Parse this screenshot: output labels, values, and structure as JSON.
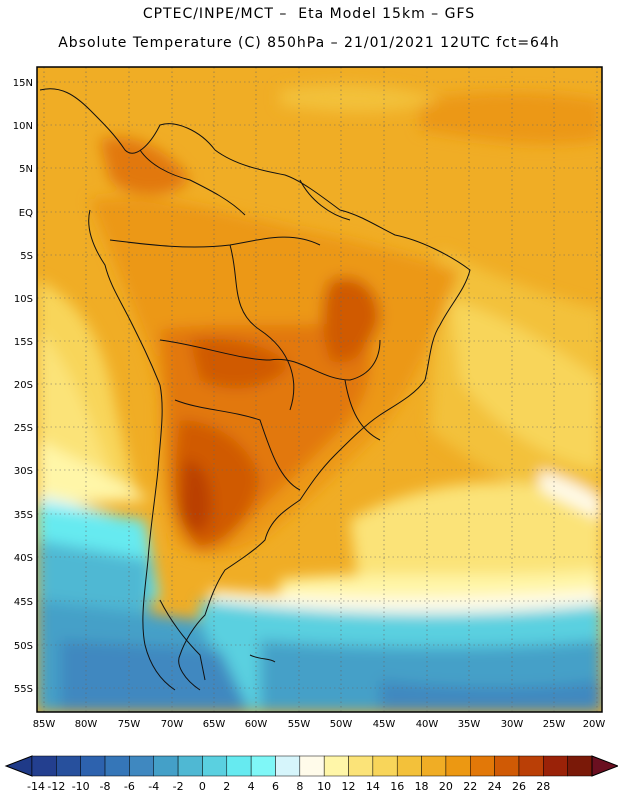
{
  "header": {
    "line1": "CPTEC/INPE/MCT –  Eta Model 15km – GFS",
    "line2": "Absolute Temperature (C) 850hPa – 21/01/2021 12UTC fct=64h"
  },
  "axes": {
    "lat_labels": [
      "15N",
      "10N",
      "5N",
      "EQ",
      "5S",
      "10S",
      "15S",
      "20S",
      "25S",
      "30S",
      "35S",
      "40S",
      "45S",
      "50S",
      "55S"
    ],
    "lon_labels": [
      "85W",
      "80W",
      "75W",
      "70W",
      "65W",
      "60W",
      "55W",
      "50W",
      "45W",
      "40W",
      "35W",
      "30W",
      "25W",
      "20W"
    ]
  },
  "colorbar": {
    "labels": [
      "-14",
      "-12",
      "-10",
      "-8",
      "-6",
      "-4",
      "-2",
      "0",
      "2",
      "4",
      "6",
      "8",
      "10",
      "12",
      "14",
      "16",
      "18",
      "20",
      "22",
      "24",
      "26",
      "28"
    ],
    "colors": [
      "#233f8f",
      "#27509d",
      "#2d62ae",
      "#3576b8",
      "#3f88c0",
      "#44a0c8",
      "#4fb8d3",
      "#5ad0e0",
      "#66eaf0",
      "#7ff7f7",
      "#d6f5fb",
      "#fffbea",
      "#fff6a8",
      "#fbe378",
      "#f8d55a",
      "#f3c13a",
      "#f0ad25",
      "#ec9812",
      "#e27808",
      "#d05a05",
      "#ba3f06",
      "#9a2208",
      "#7a1908"
    ]
  }
}
